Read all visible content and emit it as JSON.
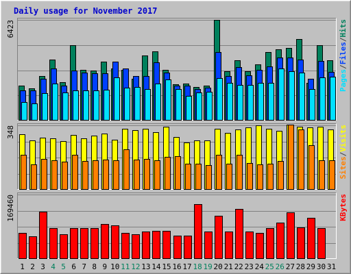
{
  "chart_data": {
    "type": "bar",
    "title": "Daily usage for November 2017",
    "categories": [
      "1",
      "2",
      "3",
      "4",
      "5",
      "6",
      "7",
      "8",
      "9",
      "10",
      "11",
      "12",
      "13",
      "14",
      "15",
      "16",
      "17",
      "18",
      "19",
      "20",
      "21",
      "22",
      "23",
      "24",
      "25",
      "26",
      "27",
      "28",
      "29",
      "30",
      "31"
    ],
    "weekend_days": [
      "4",
      "5",
      "11",
      "12",
      "18",
      "19",
      "25",
      "26"
    ],
    "panels": [
      {
        "id": "hits",
        "max_label": "6423",
        "ymax": 6423,
        "grid": true,
        "series": [
          {
            "name": "Hits",
            "color": "#00805c",
            "values": [
              2240,
              2060,
              2830,
              3900,
              2430,
              4790,
              3250,
              3170,
              3760,
              3300,
              3250,
              2680,
              4130,
              4400,
              3230,
              2300,
              2370,
              2160,
              2240,
              6423,
              3160,
              3860,
              3160,
              3580,
              4390,
              4540,
              4620,
              5200,
              2420,
              4800,
              3860
            ]
          },
          {
            "name": "Files",
            "color": "#0040ff",
            "values": [
              1920,
              1920,
              2680,
              3300,
              2230,
              3170,
              3080,
              3000,
              3000,
              3770,
              3300,
              2820,
              2850,
              3700,
              3070,
              2220,
              2230,
              2030,
              2090,
              4370,
              2820,
              3390,
              2890,
              3240,
              3460,
              4020,
              4020,
              3900,
              2660,
              3820,
              3100
            ]
          },
          {
            "name": "Pages",
            "color": "#00e0ff",
            "values": [
              1160,
              1090,
              1740,
              2360,
              1780,
              1940,
              1940,
              1940,
              1970,
              2770,
              2080,
              2130,
              2010,
              2380,
              2620,
              2000,
              1570,
              1780,
              1840,
              2730,
              2390,
              2260,
              2280,
              2420,
              2390,
              3310,
              3150,
              3060,
              2000,
              2750,
              2780
            ]
          }
        ],
        "axis_label": [
          [
            "Pages",
            "#00e0ff"
          ],
          [
            "/",
            "#404040"
          ],
          [
            "Files",
            "#0040ff"
          ],
          [
            "/",
            "#404040"
          ],
          [
            "Hits",
            "#00805c"
          ]
        ]
      },
      {
        "id": "visits",
        "max_label": "348",
        "ymax": 348,
        "grid": true,
        "series": [
          {
            "name": "Visits",
            "color": "#ffff00",
            "values": [
              300,
              266,
              280,
              278,
              262,
              298,
              278,
              294,
              302,
              270,
              330,
              322,
              330,
              310,
              342,
              284,
              256,
              268,
              268,
              330,
              308,
              324,
              336,
              348,
              330,
              318,
              350,
              340,
              336,
              340,
              326
            ]
          },
          {
            "name": "Sites",
            "color": "#ff8000",
            "values": [
              190,
              136,
              168,
              158,
              150,
              190,
              155,
              160,
              162,
              160,
              218,
              163,
              166,
              158,
              176,
              180,
              140,
              140,
              134,
              190,
              142,
              188,
              146,
              136,
              140,
              154,
              350,
              324,
              240,
              160,
              158
            ]
          }
        ],
        "axis_label": [
          [
            "Sites",
            "#ff8000"
          ],
          [
            "/",
            "#404040"
          ],
          [
            "Visits",
            "#ffff00"
          ]
        ]
      },
      {
        "id": "kbytes",
        "max_label": "169460",
        "ymax": 169460,
        "grid": true,
        "series": [
          {
            "name": "KBytes",
            "color": "#ff0000",
            "values": [
              68000,
              60000,
              124000,
              82000,
              65000,
              81000,
              81000,
              81000,
              92000,
              88000,
              69000,
              64000,
              73000,
              74000,
              74000,
              62000,
              61000,
              144000,
              72000,
              113000,
              72000,
              131000,
              72000,
              69000,
              82000,
              95000,
              122000,
              83000,
              109000,
              82000,
              0
            ]
          }
        ],
        "axis_label": [
          [
            "KBytes",
            "#ff0000"
          ]
        ]
      }
    ]
  }
}
